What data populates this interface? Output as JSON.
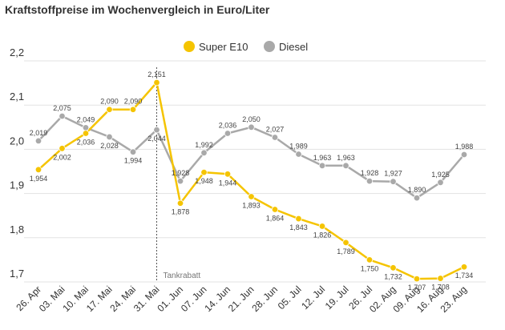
{
  "chart_data": {
    "type": "line",
    "title": "Kraftstoffpreise im Wochenvergleich in Euro/Liter",
    "categories": [
      "26. Apr",
      "03. Mai",
      "10. Mai",
      "17. Mai",
      "24. Mai",
      "31. Mai",
      "01. Jun",
      "07. Jun",
      "14. Jun",
      "21. Jun",
      "28. Jun",
      "05. Jul",
      "12. Jul",
      "19. Jul",
      "26. Jul",
      "02. Aug",
      "09. Aug",
      "16. Aug",
      "23. Aug"
    ],
    "series": [
      {
        "name": "Super E10",
        "color": "#f5c400",
        "values": [
          1.954,
          2.002,
          2.036,
          2.09,
          2.09,
          2.151,
          1.878,
          1.948,
          1.944,
          1.893,
          1.864,
          1.843,
          1.826,
          1.789,
          1.75,
          1.732,
          1.707,
          1.708,
          1.734
        ],
        "labels": [
          "1,954",
          "2,002",
          "2,036",
          "2,090",
          "2,090",
          "2,151",
          "1,878",
          "1,948",
          "1,944",
          "1,893",
          "1,864",
          "1,843",
          "1,826",
          "1,789",
          "1,750",
          "1,732",
          "1,707",
          "1,708",
          "1,734"
        ]
      },
      {
        "name": "Diesel",
        "color": "#a9a9a9",
        "values": [
          2.019,
          2.075,
          2.049,
          2.028,
          1.994,
          2.044,
          1.928,
          1.992,
          2.036,
          2.05,
          2.027,
          1.989,
          1.963,
          1.963,
          1.928,
          1.927,
          1.89,
          1.925,
          1.988
        ],
        "labels": [
          "2,019",
          "2,075",
          "2,049",
          "2,028",
          "1,994",
          "2,044",
          "1,928",
          "1,992",
          "2,036",
          "2,050",
          "2,027",
          "1,989",
          "1,963",
          "1,963",
          "1,928",
          "1,927",
          "1,890",
          "1,925",
          "1,988"
        ]
      }
    ],
    "yticks": [
      1.7,
      1.8,
      1.9,
      2.0,
      2.1,
      2.2
    ],
    "ytick_labels": [
      "1,7",
      "1,8",
      "1,9",
      "2,0",
      "2,1",
      "2,2"
    ],
    "ylim": [
      1.7,
      2.2
    ],
    "grid": true,
    "legend": "top-center",
    "annotation": {
      "text": "Tankrabatt",
      "category": "31. Mai"
    }
  }
}
